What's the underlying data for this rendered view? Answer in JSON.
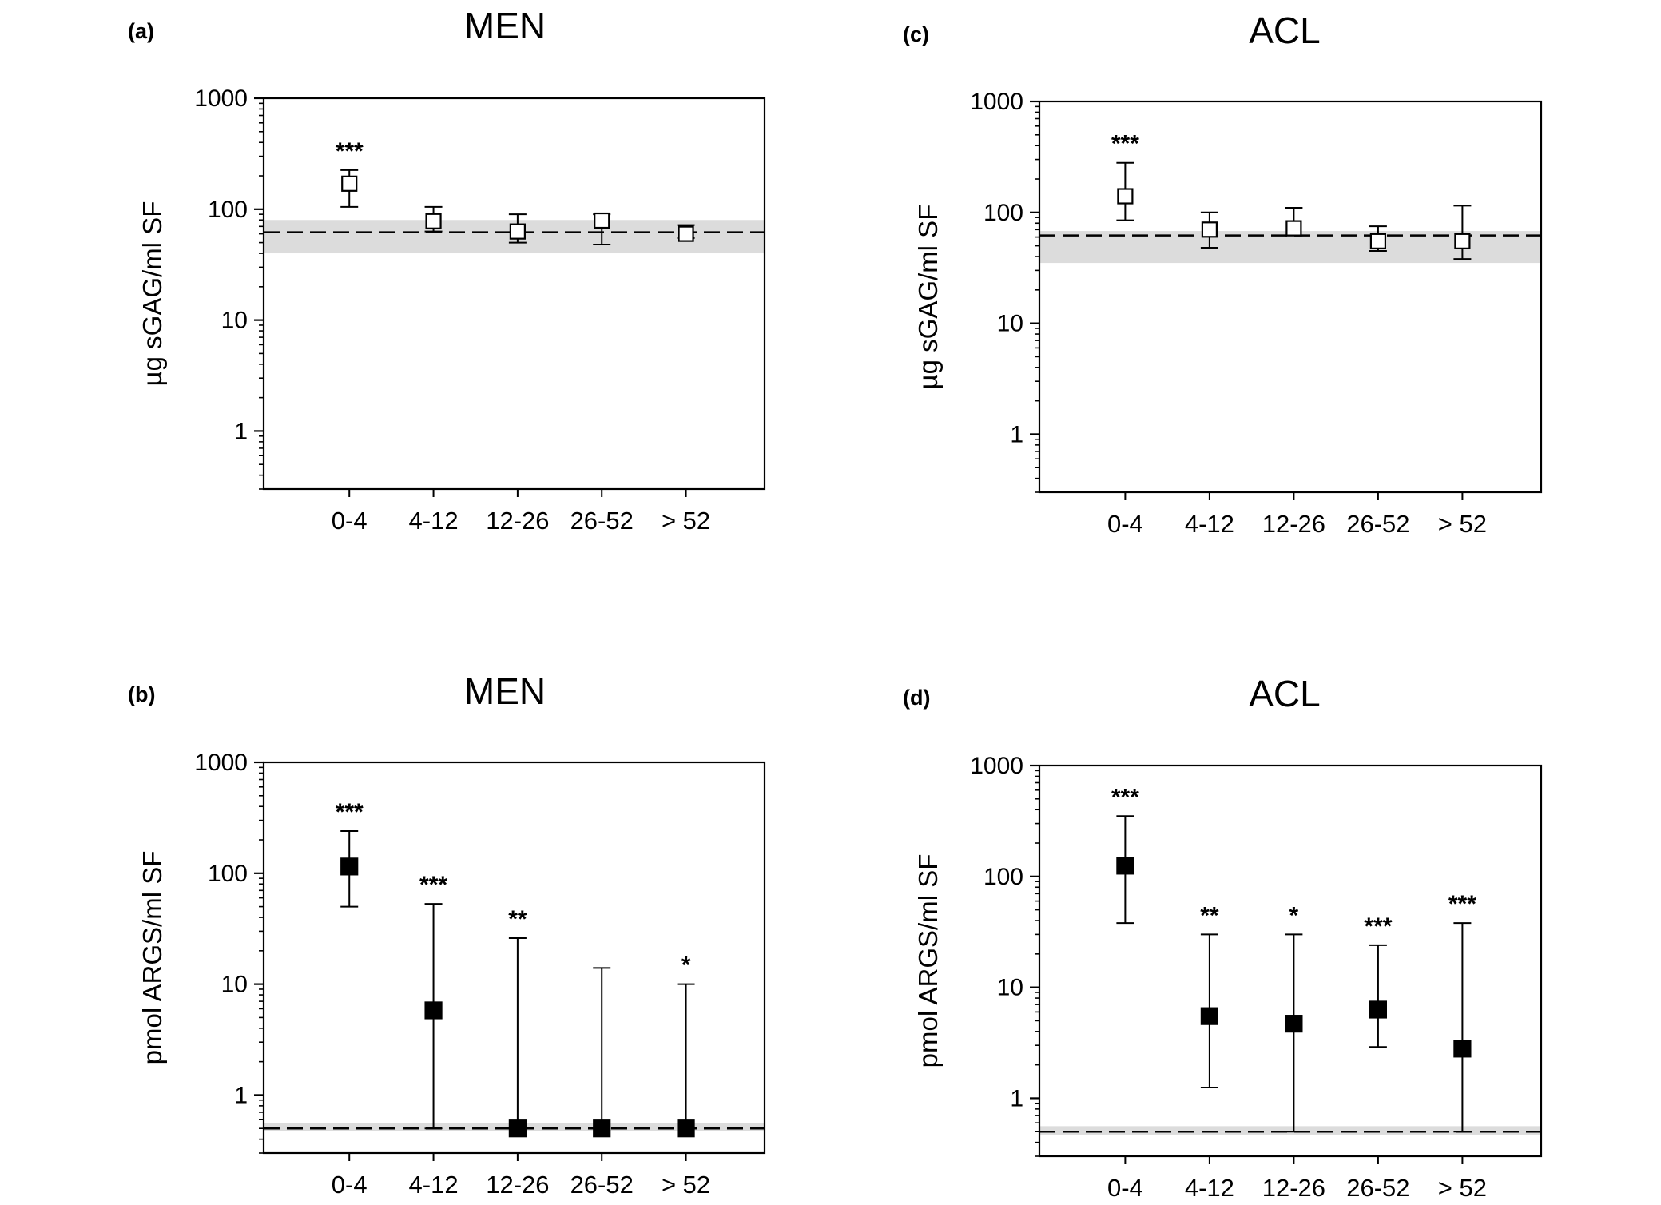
{
  "chart_data": [
    {
      "type": "scatter",
      "panel_label": "(a)",
      "title": "MEN",
      "ylabel": "µg sGAG/ml SF",
      "yscale": "log",
      "ylim": [
        0.3,
        1000
      ],
      "yticks": [
        1,
        10,
        100,
        1000
      ],
      "ytick_labels": [
        "1",
        "10",
        "100",
        "1000"
      ],
      "categories": [
        "0-4",
        "4-12",
        "12-26",
        "26-52",
        "> 52"
      ],
      "marker": "open-square",
      "values": [
        170,
        78,
        63,
        79,
        60
      ],
      "err_low": [
        105,
        63,
        50,
        48,
        55
      ],
      "err_high": [
        225,
        105,
        90,
        90,
        72
      ],
      "significance": [
        "***",
        "",
        "",
        "",
        ""
      ],
      "reference_line": 62,
      "reference_band": [
        40,
        80
      ]
    },
    {
      "type": "scatter",
      "panel_label": "(b)",
      "title": "MEN",
      "ylabel": "pmol ARGS/ml SF",
      "yscale": "log",
      "ylim": [
        0.3,
        1000
      ],
      "yticks": [
        1,
        10,
        100,
        1000
      ],
      "ytick_labels": [
        "1",
        "10",
        "100",
        "1000"
      ],
      "categories": [
        "0-4",
        "4-12",
        "12-26",
        "26-52",
        "> 52"
      ],
      "marker": "filled-square",
      "values": [
        115,
        5.8,
        0.5,
        0.5,
        0.5
      ],
      "err_low": [
        50,
        0.5,
        0.5,
        0.5,
        0.5
      ],
      "err_high": [
        240,
        53,
        26,
        14,
        10
      ],
      "significance": [
        "***",
        "***",
        "**",
        "",
        "*"
      ],
      "reference_line": 0.5,
      "reference_band": [
        0.47,
        0.56
      ]
    },
    {
      "type": "scatter",
      "panel_label": "(c)",
      "title": "ACL",
      "ylabel": "µg sGAG/ml SF",
      "yscale": "log",
      "ylim": [
        0.3,
        1000
      ],
      "yticks": [
        1,
        10,
        100,
        1000
      ],
      "ytick_labels": [
        "1",
        "10",
        "100",
        "1000"
      ],
      "categories": [
        "0-4",
        "4-12",
        "12-26",
        "26-52",
        "> 52"
      ],
      "marker": "open-square",
      "values": [
        140,
        70,
        72,
        55,
        55
      ],
      "err_low": [
        85,
        48,
        62,
        45,
        38
      ],
      "err_high": [
        280,
        100,
        110,
        75,
        115
      ],
      "significance": [
        "***",
        "",
        "",
        "",
        ""
      ],
      "reference_line": 62,
      "reference_band": [
        35,
        68
      ]
    },
    {
      "type": "scatter",
      "panel_label": "(d)",
      "title": "ACL",
      "ylabel": "pmol ARGS/ml SF",
      "yscale": "log",
      "ylim": [
        0.3,
        1000
      ],
      "yticks": [
        1,
        10,
        100,
        1000
      ],
      "ytick_labels": [
        "1",
        "10",
        "100",
        "1000"
      ],
      "categories": [
        "0-4",
        "4-12",
        "12-26",
        "26-52",
        "> 52"
      ],
      "marker": "filled-square",
      "values": [
        125,
        5.5,
        4.7,
        6.3,
        2.8
      ],
      "err_low": [
        38,
        1.25,
        0.5,
        2.9,
        0.5
      ],
      "err_high": [
        350,
        30,
        30,
        24,
        38
      ],
      "significance": [
        "***",
        "**",
        "*",
        "***",
        "***"
      ],
      "reference_line": 0.5,
      "reference_band": [
        0.47,
        0.56
      ]
    }
  ]
}
